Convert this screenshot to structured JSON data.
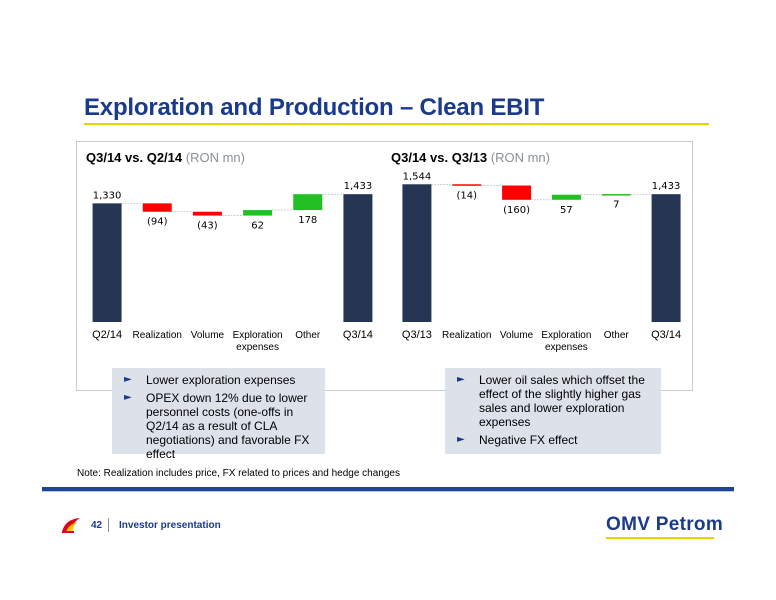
{
  "title": "Exploration and Production – Clean EBIT",
  "colors": {
    "total": "#243654",
    "negative": "#ff0000",
    "positive": "#22c022",
    "accent": "#1a3a8c",
    "rule": "#e3d400"
  },
  "chart_data": [
    {
      "type": "bar",
      "subtype": "waterfall",
      "title": "Q3/14 vs. Q2/14",
      "unit": "(RON mn)",
      "categories": [
        "Q2/14",
        "Realization",
        "Volume",
        "Exploration expenses",
        "Other",
        "Q3/14"
      ],
      "values": [
        1330,
        -94,
        -43,
        62,
        178,
        1433
      ],
      "kinds": [
        "total",
        "delta",
        "delta",
        "delta",
        "delta",
        "total"
      ],
      "data_labels": [
        "1,330",
        "(94)",
        "(43)",
        "62",
        "178",
        "1,433"
      ],
      "ylim": [
        0,
        1600
      ]
    },
    {
      "type": "bar",
      "subtype": "waterfall",
      "title": "Q3/14 vs. Q3/13",
      "unit": "(RON mn)",
      "categories": [
        "Q3/13",
        "Realization",
        "Volume",
        "Exploration expenses",
        "Other",
        "Q3/14"
      ],
      "values": [
        1544,
        -14,
        -160,
        57,
        7,
        1433
      ],
      "kinds": [
        "total",
        "delta",
        "delta",
        "delta",
        "delta",
        "total"
      ],
      "data_labels": [
        "1,544",
        "(14)",
        "(160)",
        "57",
        "7",
        "1,433"
      ],
      "ylim": [
        0,
        1600
      ]
    }
  ],
  "notes": [
    {
      "items": [
        "Lower exploration expenses",
        "OPEX down 12% due to lower personnel costs (one-offs in Q2/14 as a result of CLA negotiations) and favorable FX effect"
      ]
    },
    {
      "items": [
        "Lower oil sales which offset the effect of the slightly higher gas sales and lower exploration expenses",
        "Negative FX effect"
      ]
    }
  ],
  "footnote": "Note: Realization includes price, FX related to prices and hedge changes",
  "footer": {
    "page": "42",
    "label": "Investor presentation",
    "brand": "OMV Petrom",
    "logo_icon": "petrom-flame-logo-icon"
  }
}
